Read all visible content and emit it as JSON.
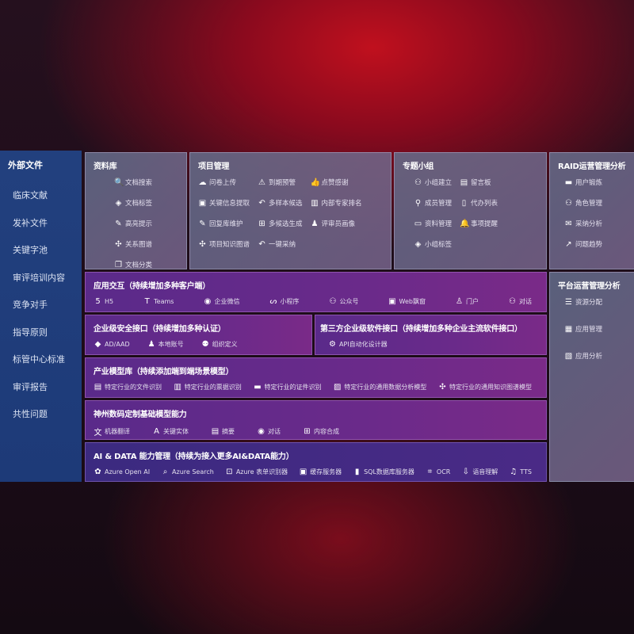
{
  "sidebar": {
    "title": "外部文件",
    "items": [
      "临床文献",
      "发补文件",
      "关键字池",
      "审评培训内容",
      "竞争对手",
      "指导原则",
      "标管中心标准",
      "审评报告",
      "共性问题"
    ]
  },
  "panels": {
    "library": {
      "title": "资料库",
      "items": [
        {
          "icon": "doc-search",
          "label": "文档搜索"
        },
        {
          "icon": "tag",
          "label": "文档标签"
        },
        {
          "icon": "pen",
          "label": "高亮提示"
        },
        {
          "icon": "graph",
          "label": "关系图谱"
        },
        {
          "icon": "doc-copy",
          "label": "文档分类"
        }
      ]
    },
    "project": {
      "title": "项目管理",
      "items": [
        {
          "icon": "cloud-upload",
          "label": "问卷上传"
        },
        {
          "icon": "alarm",
          "label": "到期预警"
        },
        {
          "icon": "thumbs-up",
          "label": "点赞感谢"
        },
        {
          "icon": "window",
          "label": "关键信息提取"
        },
        {
          "icon": "reply",
          "label": "多样本候选"
        },
        {
          "icon": "ranking",
          "label": "内部专家排名"
        },
        {
          "icon": "pen",
          "label": "回复库维护"
        },
        {
          "icon": "puzzle",
          "label": "多候选生成"
        },
        {
          "icon": "person",
          "label": "评审员画像"
        },
        {
          "icon": "graph",
          "label": "项目知识图谱"
        },
        {
          "icon": "reply",
          "label": "一键采纳"
        }
      ]
    },
    "group": {
      "title": "专题小组",
      "items": [
        {
          "icon": "users",
          "label": "小组建立"
        },
        {
          "icon": "bbs",
          "label": "留言板"
        },
        {
          "icon": "user-add",
          "label": "成员管理"
        },
        {
          "icon": "clipboard",
          "label": "代办列表"
        },
        {
          "icon": "folder",
          "label": "资料管理"
        },
        {
          "icon": "bell",
          "label": "事项提醒"
        },
        {
          "icon": "tag",
          "label": "小组标签"
        }
      ]
    },
    "raid": {
      "title": "RAID运营管理分析",
      "items": [
        {
          "icon": "id-card",
          "label": "用户锻炼"
        },
        {
          "icon": "users",
          "label": "角色管理"
        },
        {
          "icon": "qa",
          "label": "采纳分析"
        },
        {
          "icon": "trend",
          "label": "问题趋势"
        }
      ]
    },
    "platform": {
      "title": "平台运营管理分析",
      "items": [
        {
          "icon": "list",
          "label": "资源分配"
        },
        {
          "icon": "apps",
          "label": "应用管理"
        },
        {
          "icon": "chart",
          "label": "应用分析"
        }
      ]
    },
    "interaction": {
      "title": "应用交互（持续增加多种客户端）",
      "items": [
        {
          "icon": "html5",
          "label": "H5"
        },
        {
          "icon": "teams",
          "label": "Teams"
        },
        {
          "icon": "chat",
          "label": "企业微信"
        },
        {
          "icon": "mini-program",
          "label": "小程序"
        },
        {
          "icon": "users",
          "label": "公众号"
        },
        {
          "icon": "window",
          "label": "Web飘窗"
        },
        {
          "icon": "portal",
          "label": "门户"
        },
        {
          "icon": "dialog",
          "label": "对话"
        }
      ]
    },
    "security": {
      "title": "企业级安全接口（持续增加多种认证）",
      "items": [
        {
          "icon": "diamond",
          "label": "AD/AAD"
        },
        {
          "icon": "user-local",
          "label": "本地账号"
        },
        {
          "icon": "org",
          "label": "组织定义"
        }
      ]
    },
    "thirdparty": {
      "title": "第三方企业级软件接口（持续增加多种企业主流软件接口）",
      "items": [
        {
          "icon": "gear",
          "label": "API自动化设计器"
        }
      ]
    },
    "industry": {
      "title": "产业模型库（持续添加端到端场景模型）",
      "items": [
        {
          "icon": "doc",
          "label": "特定行业的文件识别"
        },
        {
          "icon": "receipt",
          "label": "特定行业的票据识别"
        },
        {
          "icon": "id-card",
          "label": "特定行业的证件识别"
        },
        {
          "icon": "image",
          "label": "特定行业的通用数据分析模型"
        },
        {
          "icon": "graph",
          "label": "特定行业的通用知识图谱模型"
        }
      ]
    },
    "digital": {
      "title": "神州数码定制基础模型能力",
      "items": [
        {
          "icon": "translate",
          "label": "机器翻译"
        },
        {
          "icon": "entity",
          "label": "关键实体"
        },
        {
          "icon": "doc",
          "label": "摘要"
        },
        {
          "icon": "chat",
          "label": "对话"
        },
        {
          "icon": "puzzle",
          "label": "内容合成"
        }
      ]
    },
    "aidata": {
      "title": "AI & DATA 能力管理（持续为接入更多AI&DATA能力）",
      "items": [
        {
          "icon": "openai",
          "label": "Azure Open AI"
        },
        {
          "icon": "search",
          "label": "Azure Search"
        },
        {
          "icon": "form",
          "label": "Azure 表单识别器"
        },
        {
          "icon": "cache",
          "label": "缓存服务器"
        },
        {
          "icon": "database",
          "label": "SQL数据库服务器"
        },
        {
          "icon": "ocr",
          "label": "OCR"
        },
        {
          "icon": "speech",
          "label": "语音理解"
        },
        {
          "icon": "tts",
          "label": "TTS"
        }
      ]
    }
  }
}
